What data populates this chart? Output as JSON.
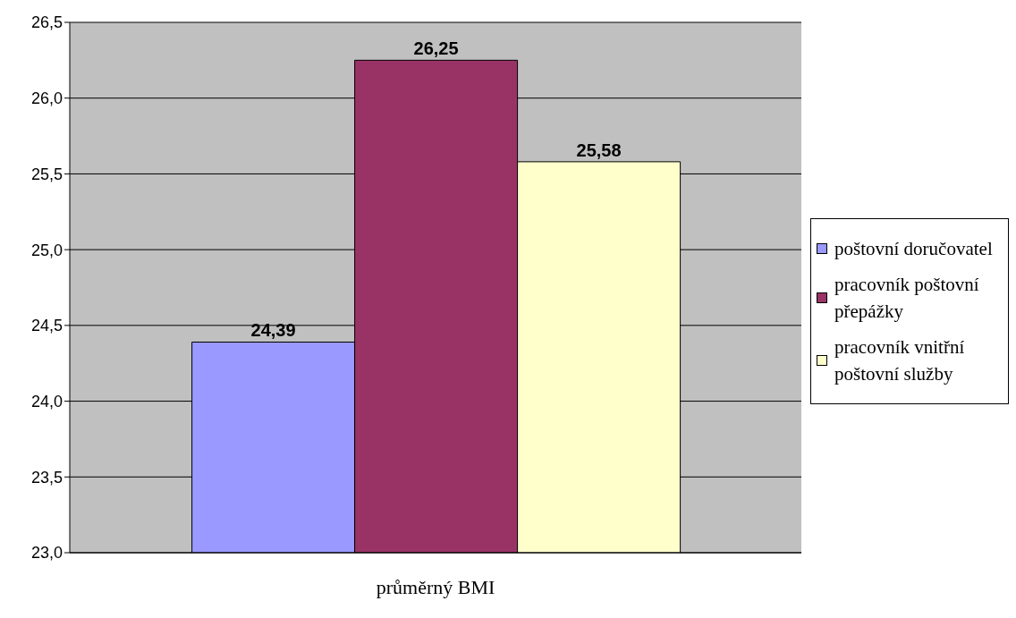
{
  "chart_data": {
    "type": "bar",
    "categories": [
      "průměrný BMI"
    ],
    "series": [
      {
        "name": "poštovní doručovatel",
        "color": "#9999ff",
        "values": [
          24.39
        ],
        "value_labels": [
          "24,39"
        ]
      },
      {
        "name": "pracovník poštovní přepážky",
        "color": "#993366",
        "values": [
          26.25
        ],
        "value_labels": [
          "26,25"
        ]
      },
      {
        "name": "pracovník vnitřní poštovní služby",
        "color": "#ffffcc",
        "values": [
          25.58
        ],
        "value_labels": [
          "25,58"
        ]
      }
    ],
    "ylim": [
      23,
      26.5
    ],
    "yticks": [
      {
        "value": 23,
        "label": "23,0"
      },
      {
        "value": 23.5,
        "label": "23,5"
      },
      {
        "value": 24,
        "label": "24,0"
      },
      {
        "value": 24.5,
        "label": "24,5"
      },
      {
        "value": 25,
        "label": "25,0"
      },
      {
        "value": 25.5,
        "label": "25,5"
      },
      {
        "value": 26,
        "label": "26,0"
      },
      {
        "value": 26.5,
        "label": "26,5"
      }
    ],
    "grid": "y",
    "legend": "right"
  }
}
